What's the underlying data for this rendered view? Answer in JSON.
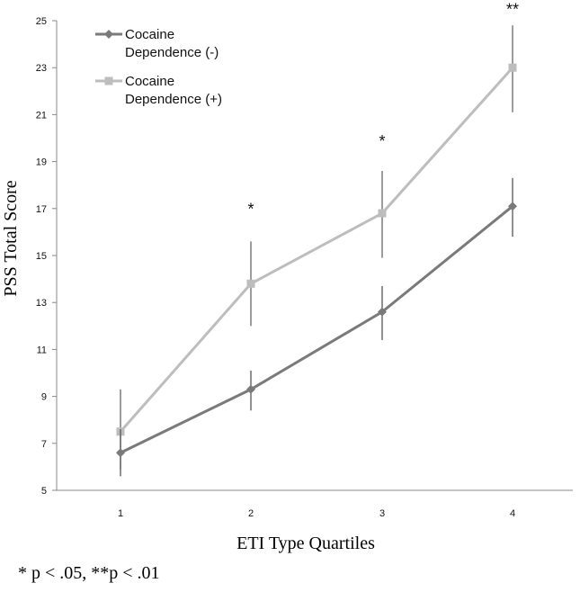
{
  "chart_data": {
    "type": "line",
    "title": "",
    "xlabel": "ETI Type Quartiles",
    "ylabel": "PSS Total Score",
    "categories": [
      "1",
      "2",
      "3",
      "4"
    ],
    "ylim": [
      5,
      25
    ],
    "yticks": [
      5,
      7,
      9,
      11,
      13,
      15,
      17,
      19,
      21,
      23,
      25
    ],
    "grid": false,
    "legend_position": "top-left",
    "series": [
      {
        "name": "Cocaine Dependence (-)",
        "name_lines": [
          "Cocaine",
          "Dependence (-)"
        ],
        "marker": "diamond",
        "color": "#7a7a7a",
        "values": [
          6.6,
          9.3,
          12.6,
          17.1
        ],
        "error_low": [
          5.6,
          8.4,
          11.4,
          15.8
        ],
        "error_high": [
          7.6,
          10.1,
          13.7,
          18.3
        ]
      },
      {
        "name": "Cocaine Dependence (+)",
        "name_lines": [
          "Cocaine",
          "Dependence (+)"
        ],
        "marker": "square",
        "color": "#bdbdbd",
        "values": [
          7.5,
          13.8,
          16.8,
          23.0
        ],
        "error_low": [
          5.9,
          12.0,
          14.9,
          21.1
        ],
        "error_high": [
          9.3,
          15.6,
          18.6,
          24.8
        ]
      }
    ],
    "annotations": [
      {
        "category": "2",
        "text": "*",
        "y": 17.2
      },
      {
        "category": "3",
        "text": "*",
        "y": 20.1
      },
      {
        "category": "4",
        "text": "**",
        "y": 25.7
      }
    ]
  },
  "footnote": "* p < .05, **p < .01"
}
